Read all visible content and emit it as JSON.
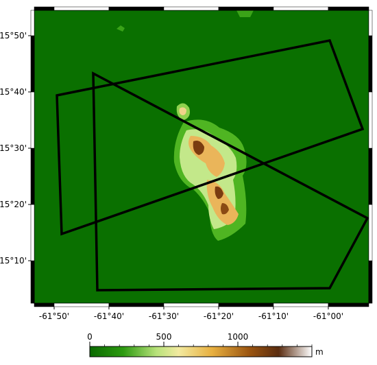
{
  "map": {
    "lon_range": [
      -61.8937,
      -60.877
    ],
    "lat_range": [
      15.0407,
      15.9085
    ],
    "lon_ticks": [
      {
        "value": -61.8333,
        "label": "-61°50'"
      },
      {
        "value": -61.6667,
        "label": "-61°40'"
      },
      {
        "value": -61.5,
        "label": "-61°30'"
      },
      {
        "value": -61.3333,
        "label": "-61°20'"
      },
      {
        "value": -61.1667,
        "label": "-61°10'"
      },
      {
        "value": -61.0,
        "label": "-61°00'"
      }
    ],
    "lat_ticks": [
      {
        "value": 15.8333,
        "label": "15°50'"
      },
      {
        "value": 15.6667,
        "label": "15°40'"
      },
      {
        "value": 15.5,
        "label": "15°30'"
      },
      {
        "value": 15.3333,
        "label": "15°20'"
      },
      {
        "value": 15.1667,
        "label": "15°10'"
      }
    ],
    "colorbar": {
      "lim": [
        0,
        1500
      ],
      "ticks": [
        0,
        500,
        1000
      ],
      "unit": "m"
    }
  }
}
